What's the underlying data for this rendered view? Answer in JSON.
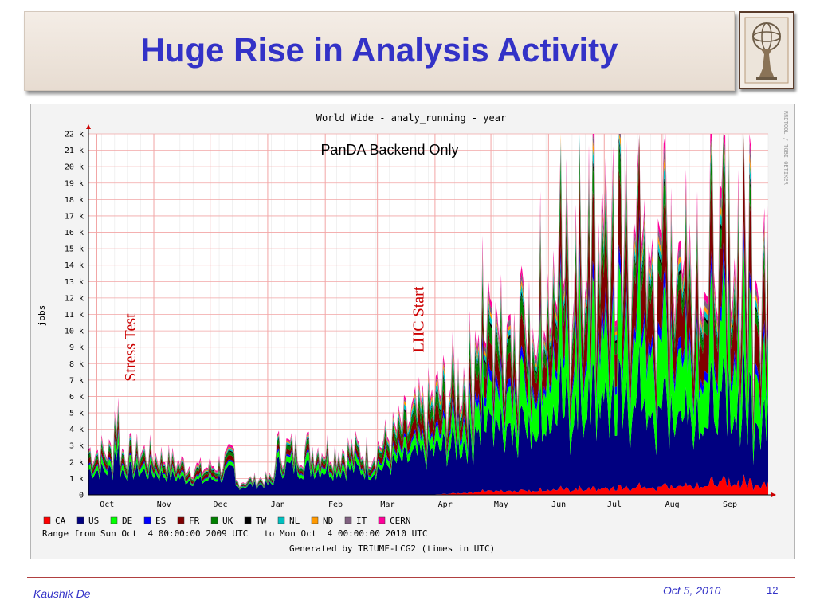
{
  "slide": {
    "title": "Huge Rise in Analysis Activity",
    "footer_author": "Kaushik De",
    "footer_date": "Oct 5, 2010",
    "page_number": "12"
  },
  "logo": {
    "icon": "atlas-statue-logo"
  },
  "colors": {
    "title": "#3332c7",
    "annotation": "#cc0000",
    "grid_major": "#f2a5a5",
    "grid_minor": "#e8e8e8",
    "plot_bg": "#ffffff"
  },
  "chart_data": {
    "type": "area",
    "stacked": true,
    "title": "World Wide - analy_running - year",
    "subtitle": "PanDA Backend Only",
    "ylabel": "jobs",
    "ylim": [
      0,
      22000
    ],
    "y_ticks": [
      "0",
      "1 k",
      "2 k",
      "3 k",
      "4 k",
      "5 k",
      "6 k",
      "7 k",
      "8 k",
      "9 k",
      "10 k",
      "11 k",
      "12 k",
      "13 k",
      "14 k",
      "15 k",
      "16 k",
      "17 k",
      "18 k",
      "19 k",
      "20 k",
      "21 k",
      "22 k"
    ],
    "x_months": [
      "Oct",
      "Nov",
      "Dec",
      "Jan",
      "Feb",
      "Mar",
      "Apr",
      "May",
      "Jun",
      "Jul",
      "Aug",
      "Sep"
    ],
    "x_month_positions": [
      0.0546,
      0.2223,
      0.388,
      0.5574,
      0.7268,
      0.8803,
      1.0497,
      1.2142,
      1.3837,
      1.5476,
      1.7178,
      1.8876
    ],
    "x_range": [
      0,
      2
    ],
    "side_label": "RRDTOOL / TOBI OETIKER",
    "grid": true,
    "legend": [
      {
        "name": "CA",
        "color": "#ff0000"
      },
      {
        "name": "US",
        "color": "#000080"
      },
      {
        "name": "DE",
        "color": "#00ff00"
      },
      {
        "name": "ES",
        "color": "#0000ff"
      },
      {
        "name": "FR",
        "color": "#800000"
      },
      {
        "name": "UK",
        "color": "#008000"
      },
      {
        "name": "TW",
        "color": "#000000"
      },
      {
        "name": "NL",
        "color": "#00c0c0"
      },
      {
        "name": "ND",
        "color": "#ff9900"
      },
      {
        "name": "IT",
        "color": "#806080"
      },
      {
        "name": "CERN",
        "color": "#ff0099"
      }
    ],
    "legend_placement": "bottom",
    "range_text": "Range from Sun Oct  4 00:00:00 2009 UTC   to Mon Oct  4 00:00:00 2010 UTC",
    "generated_text": "Generated by TRIUMF-LCG2 (times in UTC)",
    "annotations": [
      {
        "text": "Stress Test",
        "at_month": "Oct"
      },
      {
        "text": "LHC Start",
        "at_month": "Mar"
      }
    ],
    "series_monthly_approx": {
      "months": [
        "Oct",
        "Nov",
        "Dec",
        "Jan",
        "Feb",
        "Mar",
        "Apr",
        "May",
        "Jun",
        "Jul",
        "Aug",
        "Sep"
      ],
      "CA": [
        0,
        0,
        0,
        0,
        0,
        0,
        0,
        200,
        250,
        300,
        400,
        600
      ],
      "US": [
        1500,
        1400,
        800,
        1800,
        1600,
        1500,
        2500,
        3500,
        3600,
        4300,
        4000,
        3800
      ],
      "DE": [
        300,
        300,
        150,
        200,
        400,
        300,
        600,
        1500,
        2500,
        3000,
        3500,
        3000
      ],
      "ES": [
        100,
        100,
        50,
        100,
        100,
        100,
        200,
        500,
        400,
        600,
        600,
        600
      ],
      "FR": [
        300,
        300,
        200,
        200,
        300,
        300,
        800,
        1200,
        1500,
        2500,
        2500,
        2500
      ],
      "UK": [
        200,
        200,
        100,
        200,
        200,
        200,
        500,
        800,
        700,
        900,
        800,
        800
      ],
      "TW": [
        50,
        50,
        50,
        50,
        50,
        50,
        100,
        150,
        150,
        200,
        200,
        200
      ],
      "NL": [
        100,
        100,
        50,
        100,
        100,
        100,
        300,
        300,
        300,
        400,
        400,
        400
      ],
      "ND": [
        50,
        50,
        50,
        50,
        50,
        50,
        200,
        200,
        200,
        300,
        300,
        300
      ],
      "IT": [
        50,
        50,
        50,
        50,
        50,
        50,
        100,
        300,
        300,
        400,
        400,
        400
      ],
      "CERN": [
        100,
        100,
        100,
        100,
        100,
        100,
        200,
        300,
        300,
        400,
        400,
        500
      ]
    }
  }
}
